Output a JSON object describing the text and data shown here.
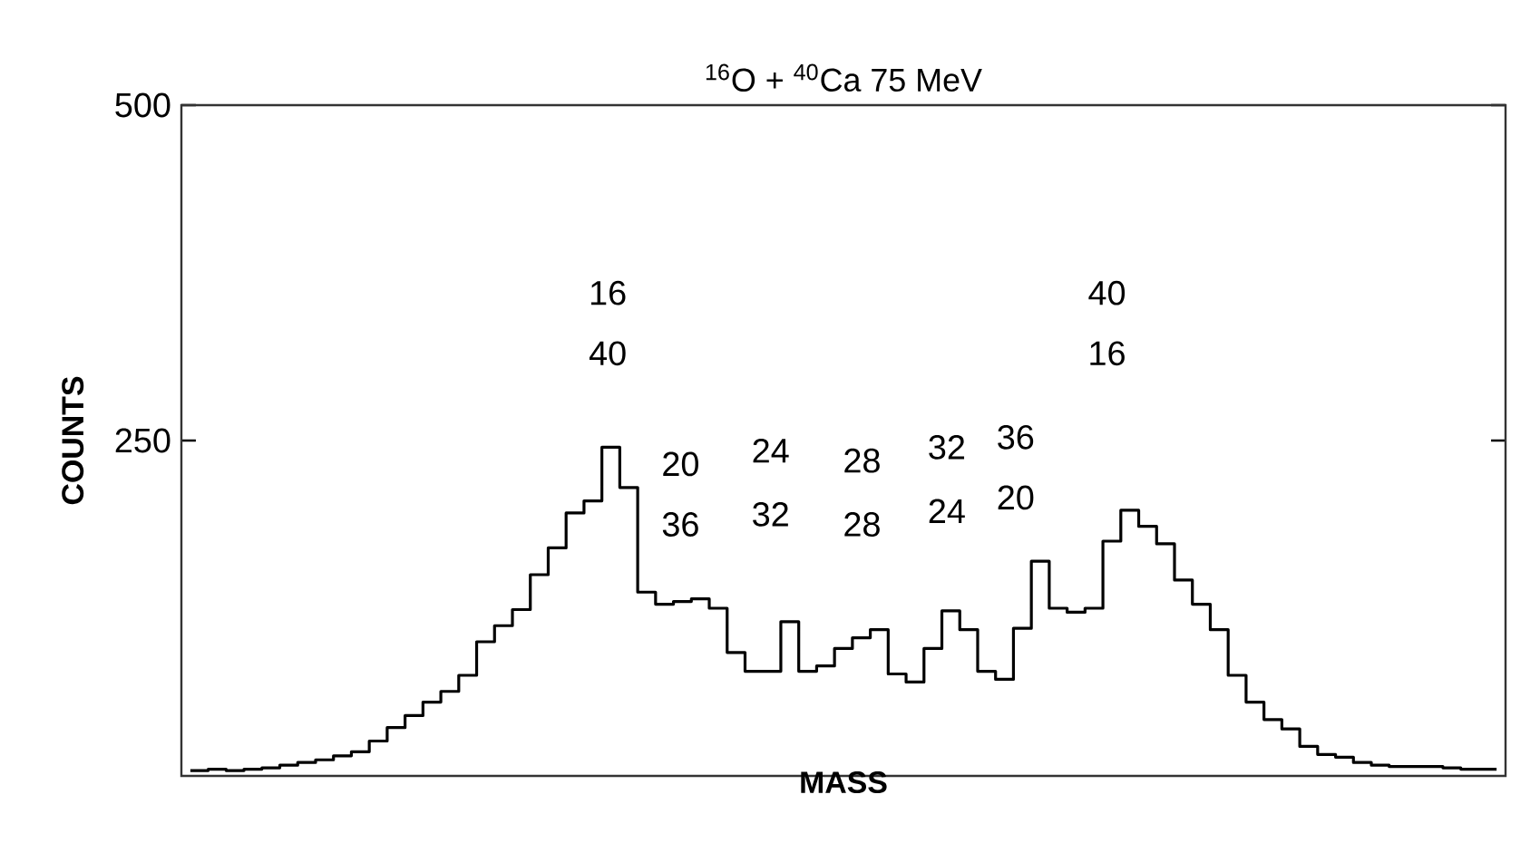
{
  "chart_data": {
    "type": "step",
    "title": "$^{16}$O + $^{40}$Ca 75 MeV",
    "xlabel": "MASS",
    "ylabel": "COUNTS",
    "categories": [
      null,
      null,
      null,
      null,
      null,
      null,
      null,
      null,
      null,
      null,
      null,
      null,
      null,
      null,
      null,
      null,
      null,
      null,
      null,
      null,
      null,
      null,
      null,
      null,
      null,
      null,
      null,
      null,
      null,
      null,
      null,
      null,
      null,
      null,
      null,
      null,
      null,
      null,
      null,
      null,
      null,
      null,
      null,
      null,
      null,
      null,
      null,
      null,
      null,
      null,
      null,
      null,
      null,
      null,
      null,
      null,
      null,
      null,
      null,
      null,
      null,
      null,
      null,
      null,
      null,
      null,
      null,
      null,
      null,
      null,
      null,
      null,
      null,
      null
    ],
    "values": [
      4,
      5,
      4,
      5,
      6,
      8,
      10,
      12,
      15,
      18,
      26,
      36,
      45,
      55,
      63,
      75,
      100,
      112,
      124,
      150,
      170,
      196,
      205,
      245,
      215,
      137,
      128,
      130,
      132,
      125,
      92,
      78,
      78,
      115,
      78,
      82,
      95,
      103,
      109,
      76,
      70,
      95,
      123,
      109,
      78,
      72,
      110,
      160,
      125,
      122,
      125,
      175,
      198,
      186,
      173,
      146,
      128,
      109,
      75,
      55,
      42,
      35,
      22,
      16,
      14,
      10,
      8,
      7,
      7,
      7,
      6,
      5,
      5,
      5
    ],
    "color": "#000000",
    "ylim": [
      0,
      500
    ],
    "yticks": [
      250,
      500
    ],
    "grid": false,
    "marker": "none",
    "line_style": "solid",
    "annotations": [
      "16",
      "40",
      "20",
      "36",
      "24",
      "32",
      "28",
      "28",
      "32",
      "24",
      "36",
      "20",
      "40",
      "16"
    ]
  }
}
